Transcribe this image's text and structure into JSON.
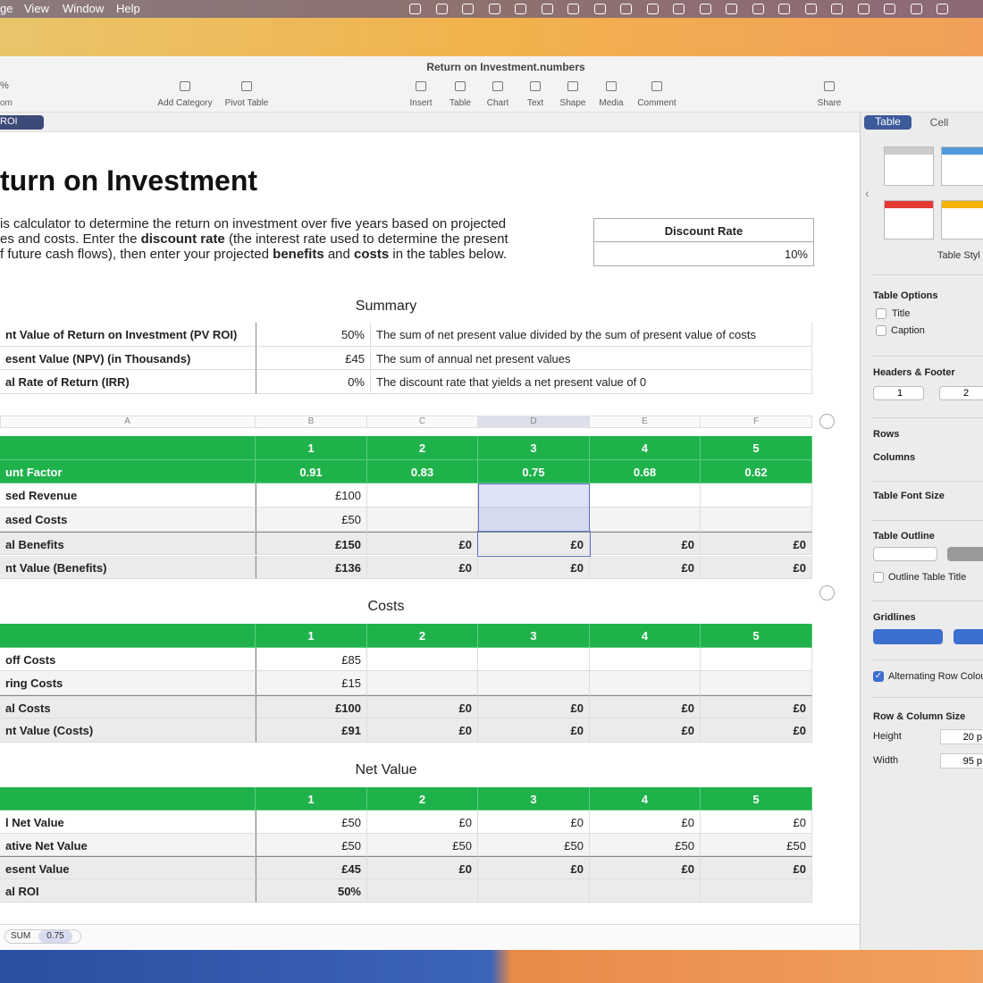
{
  "menubar": {
    "items": [
      "ge",
      "View",
      "Window",
      "Help"
    ]
  },
  "window": {
    "title": "Return on Investment.numbers"
  },
  "toolbar": {
    "zoom": "%",
    "zoom_label": "om",
    "items": [
      "Add Category",
      "Pivot Table",
      "Insert",
      "Table",
      "Chart",
      "Text",
      "Shape",
      "Media",
      "Comment",
      "Share"
    ]
  },
  "sheet_tab": "ROI",
  "heading": "turn on Investment",
  "intro": [
    [
      {
        "text": "is calculator to determine the return on investment over five years based on projected",
        "bold": false
      }
    ],
    [
      {
        "text": "es and costs. Enter the ",
        "bold": false
      },
      {
        "text": "discount rate",
        "bold": true
      },
      {
        "text": " (the interest rate used to determine the present",
        "bold": false
      }
    ],
    [
      {
        "text": "f future cash flows), then enter your projected ",
        "bold": false
      },
      {
        "text": "benefits",
        "bold": true
      },
      {
        "text": " and ",
        "bold": false
      },
      {
        "text": "costs",
        "bold": true
      },
      {
        "text": " in the tables below.",
        "bold": false
      }
    ]
  ],
  "discount_table": {
    "header": "Discount Rate",
    "value": "10%"
  },
  "summary": {
    "title": "Summary",
    "rows": [
      [
        "nt Value of Return on Investment (PV ROI)",
        "50%",
        "The sum of net present value divided by the sum of present value of costs"
      ],
      [
        "esent Value (NPV) (in Thousands)",
        "£45",
        "The sum of annual net present values"
      ],
      [
        "al Rate of Return (IRR)",
        "0%",
        "The discount rate that yields a net present value of 0"
      ]
    ]
  },
  "column_letters": [
    "A",
    "B",
    "C",
    "D",
    "E",
    "F"
  ],
  "tables": [
    {
      "rows": [
        {
          "style": "header",
          "cells": [
            null,
            "1",
            "2",
            "3",
            "4",
            "5"
          ]
        },
        {
          "style": "header",
          "cells": [
            "unt Factor",
            "0.91",
            "0.83",
            "0.75",
            "0.68",
            "0.62"
          ]
        },
        {
          "style": "body",
          "cells": [
            "sed Revenue",
            "£100",
            null,
            null,
            null,
            null
          ]
        },
        {
          "style": "body",
          "cells": [
            "ased Costs",
            "£50",
            null,
            null,
            null,
            null
          ]
        },
        {
          "style": "total",
          "cells": [
            "al Benefits",
            "£150",
            "£0",
            "£0",
            "£0",
            "£0"
          ]
        },
        {
          "style": "total",
          "cells": [
            "nt Value (Benefits)",
            "£136",
            "£0",
            "£0",
            "£0",
            "£0"
          ]
        }
      ]
    },
    {
      "title": "Costs",
      "rows": [
        {
          "style": "header",
          "cells": [
            null,
            "1",
            "2",
            "3",
            "4",
            "5"
          ]
        },
        {
          "style": "body",
          "cells": [
            "off Costs",
            "£85",
            null,
            null,
            null,
            null
          ]
        },
        {
          "style": "body",
          "cells": [
            "ring Costs",
            "£15",
            null,
            null,
            null,
            null
          ]
        },
        {
          "style": "total",
          "cells": [
            "al Costs",
            "£100",
            "£0",
            "£0",
            "£0",
            "£0"
          ]
        },
        {
          "style": "total",
          "cells": [
            "nt Value (Costs)",
            "£91",
            "£0",
            "£0",
            "£0",
            "£0"
          ]
        }
      ]
    },
    {
      "title": "Net Value",
      "rows": [
        {
          "style": "header",
          "cells": [
            null,
            "1",
            "2",
            "3",
            "4",
            "5"
          ]
        },
        {
          "style": "body",
          "cells": [
            "l Net Value",
            "£50",
            "£0",
            "£0",
            "£0",
            "£0"
          ]
        },
        {
          "style": "body",
          "cells": [
            "ative Net Value",
            "£50",
            "£50",
            "£50",
            "£50",
            "£50"
          ]
        },
        {
          "style": "total",
          "cells": [
            "esent Value",
            "£45",
            "£0",
            "£0",
            "£0",
            "£0"
          ]
        },
        {
          "style": "total",
          "cells": [
            "al ROI",
            "50%",
            null,
            null,
            null,
            null
          ]
        }
      ]
    }
  ],
  "status": {
    "function": "SUM",
    "value": "0.75"
  },
  "sidebar": {
    "tabs": [
      "Table",
      "Cell"
    ],
    "style_label": "Table Styl",
    "table_options": "Table Options",
    "title_option": "Title",
    "caption_option": "Caption",
    "headers_footer": "Headers & Footer",
    "header_rows": "1",
    "header_cols": "2",
    "rows": "Rows",
    "columns": "Columns",
    "font_size": "Table Font Size",
    "outline": "Table Outline",
    "outline_title": "Outline Table Title",
    "gridlines": "Gridlines",
    "alternating": "Alternating Row Colou",
    "size": "Row & Column Size",
    "height_label": "Height",
    "height_value": "20 p",
    "width_label": "Width",
    "width_value": "95 p"
  }
}
